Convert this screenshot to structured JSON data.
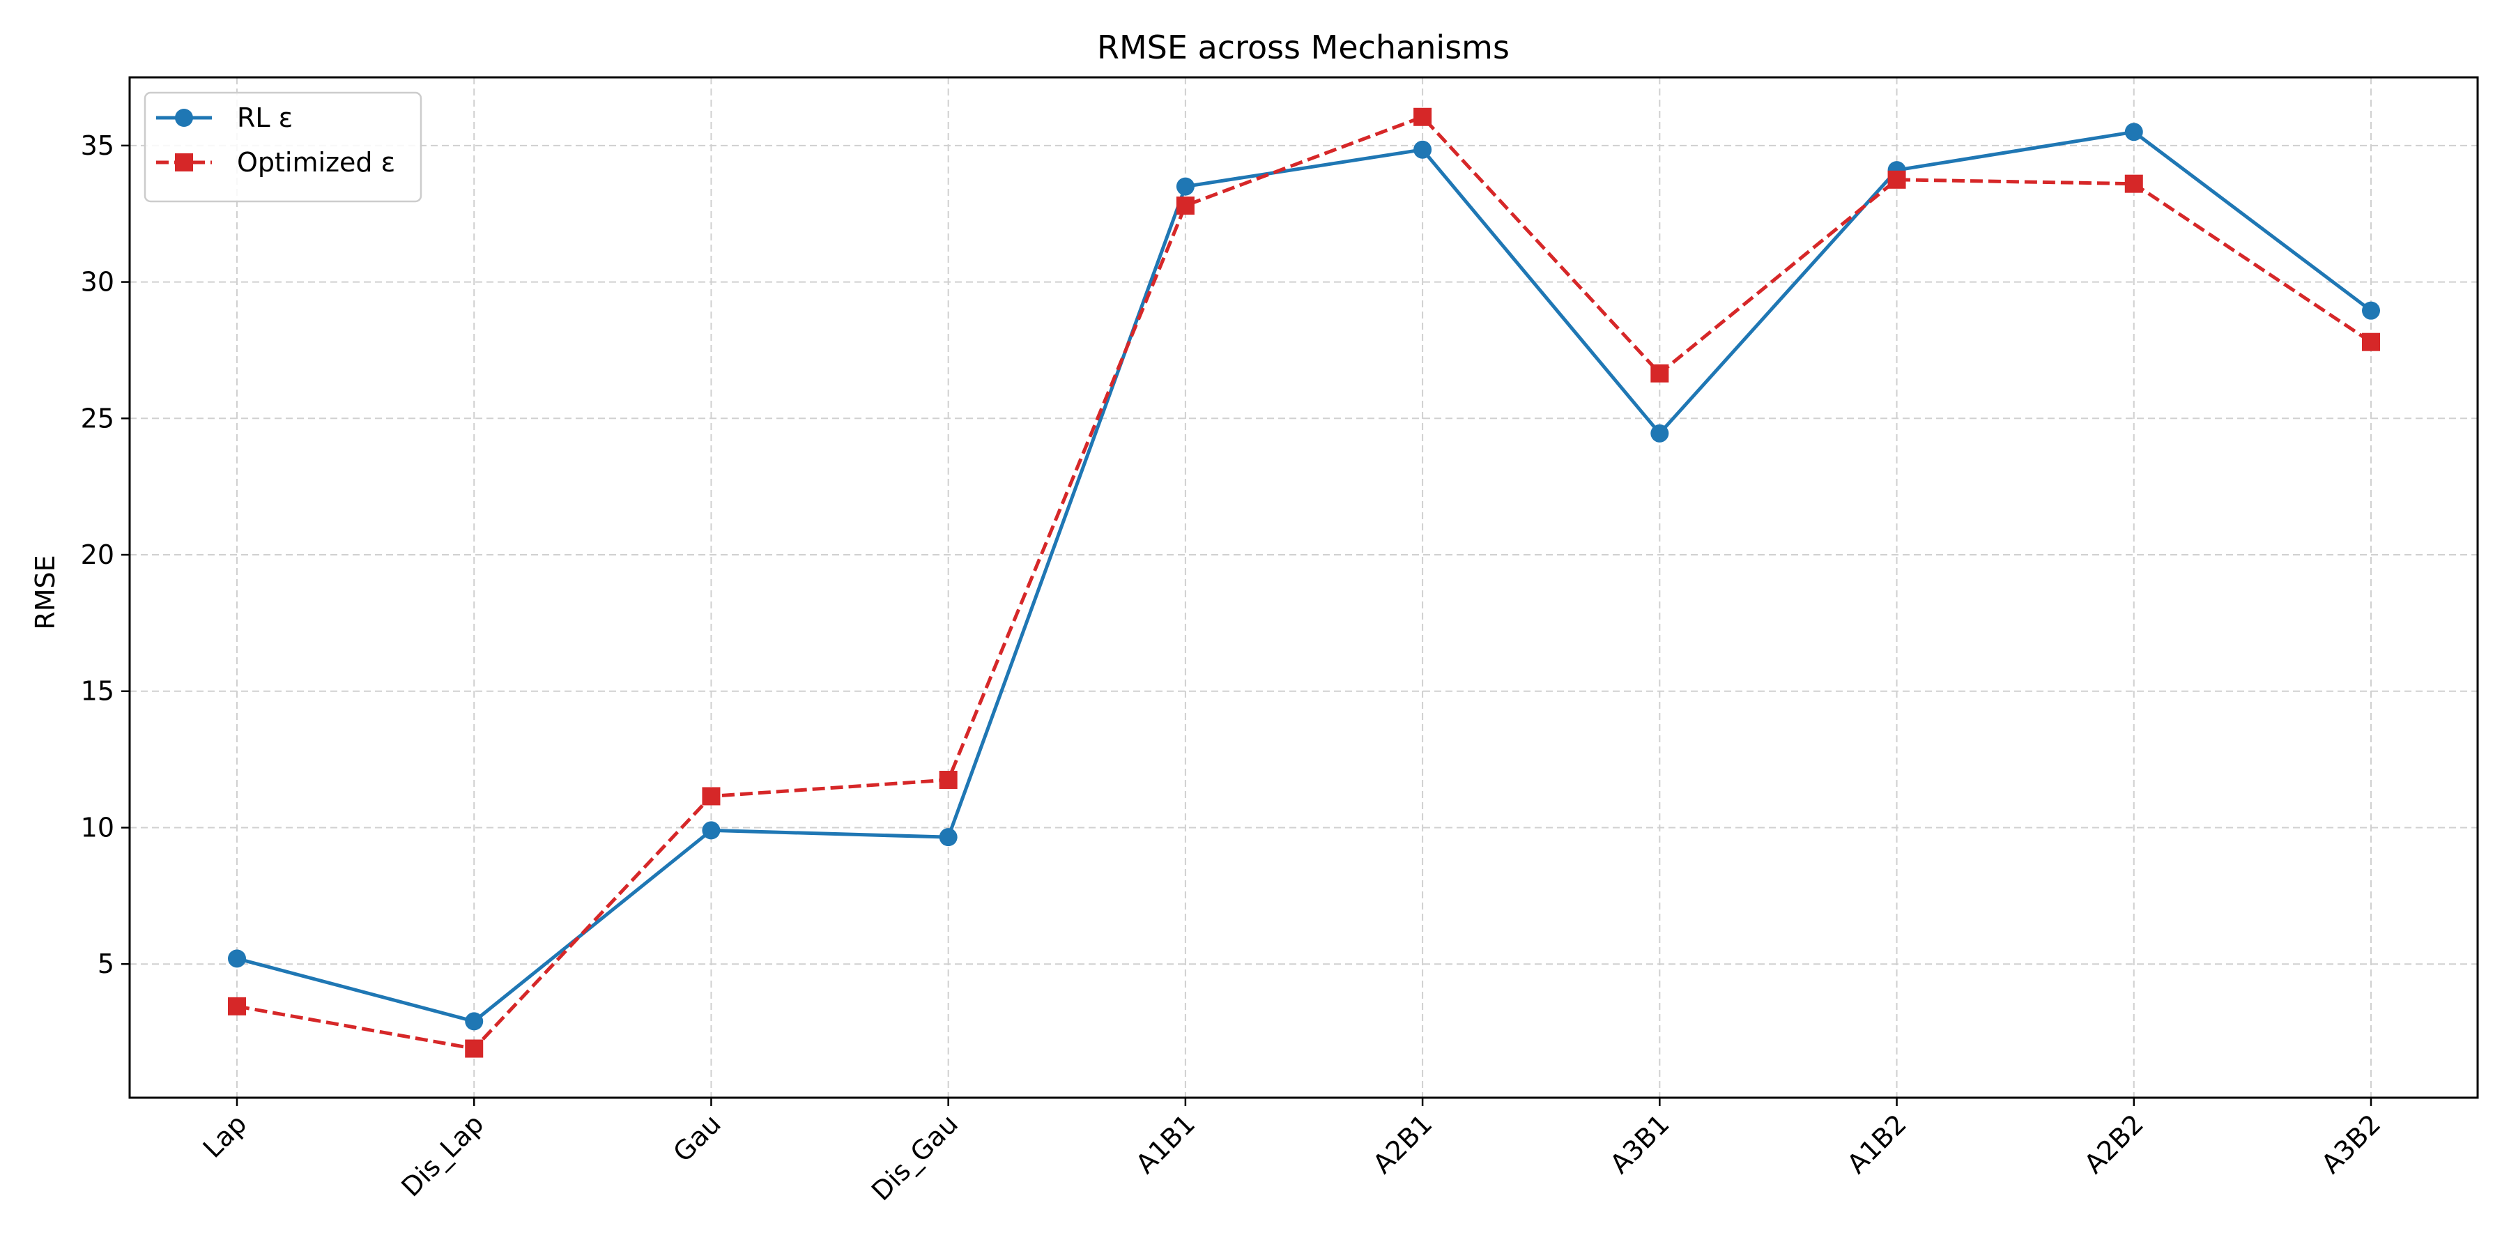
{
  "chart_data": {
    "type": "line",
    "title": "RMSE across Mechanisms",
    "xlabel": "",
    "ylabel": "RMSE",
    "categories": [
      "Lap",
      "Dis_Lap",
      "Gau",
      "Dis_Gau",
      "A1B1",
      "A2B1",
      "A3B1",
      "A1B2",
      "A2B2",
      "A3B2"
    ],
    "ylim": [
      0.1,
      37.5
    ],
    "yticks": [
      5,
      10,
      15,
      20,
      25,
      30,
      35
    ],
    "grid": true,
    "legend_position": "top-left",
    "series": [
      {
        "name": "RL ε",
        "values": [
          5.2,
          2.9,
          9.9,
          9.65,
          33.5,
          34.85,
          24.45,
          34.1,
          35.5,
          28.95
        ],
        "color": "#1f77b4",
        "marker": "circle",
        "linestyle": "solid"
      },
      {
        "name": "Optimized ε",
        "values": [
          3.45,
          1.9,
          11.15,
          11.75,
          32.8,
          36.05,
          26.65,
          33.75,
          33.6,
          27.8
        ],
        "color": "#d62728",
        "marker": "square",
        "linestyle": "dashed"
      }
    ]
  }
}
